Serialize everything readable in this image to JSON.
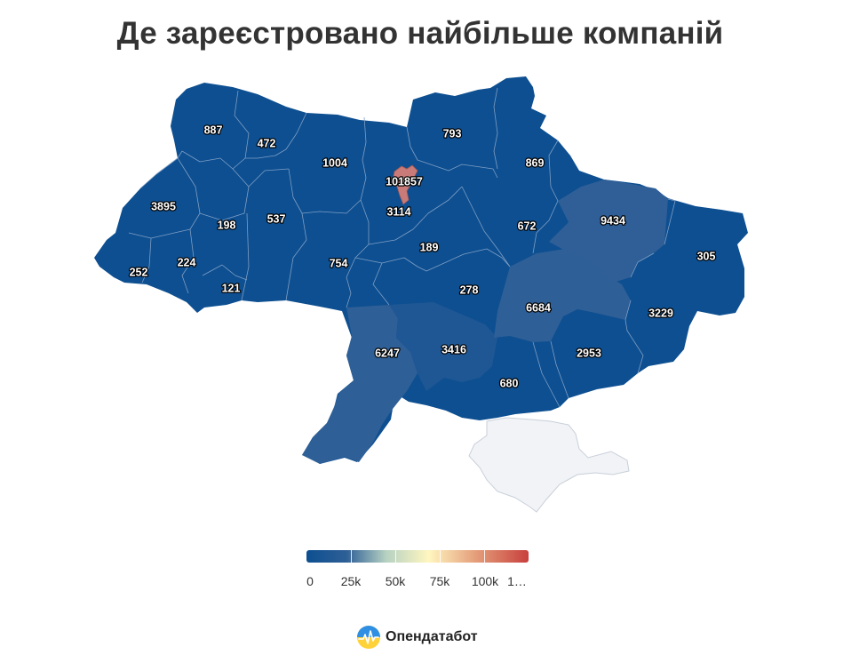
{
  "title": "Де зареєстровано найбільше компаній",
  "map": {
    "colors": {
      "low": "#0d4f91",
      "mid_low": "#2e5f96",
      "high": "#c8403d",
      "no_data": "#f1f3f6",
      "border": "#7f9ec4"
    },
    "regions": [
      {
        "id": "volyn",
        "value": "887"
      },
      {
        "id": "rivne",
        "value": "472"
      },
      {
        "id": "zhytomyr",
        "value": "1004"
      },
      {
        "id": "kyiv-city",
        "value": "101857"
      },
      {
        "id": "kyiv-oblast",
        "value": "3114"
      },
      {
        "id": "chernihiv",
        "value": "793"
      },
      {
        "id": "sumy",
        "value": "869"
      },
      {
        "id": "lviv",
        "value": "3895"
      },
      {
        "id": "ternopil",
        "value": "198"
      },
      {
        "id": "khmelnytskyi",
        "value": "537"
      },
      {
        "id": "kharkiv",
        "value": "9434"
      },
      {
        "id": "poltava",
        "value": "672"
      },
      {
        "id": "luhansk",
        "value": "305"
      },
      {
        "id": "zakarpattia",
        "value": "252"
      },
      {
        "id": "ivano-frankivsk",
        "value": "224"
      },
      {
        "id": "vinnytsia",
        "value": "754"
      },
      {
        "id": "cherkasy",
        "value": "189"
      },
      {
        "id": "chernivtsi",
        "value": "121"
      },
      {
        "id": "kirovohrad",
        "value": "278"
      },
      {
        "id": "dnipropetrovsk",
        "value": "6684"
      },
      {
        "id": "donetsk",
        "value": "3229"
      },
      {
        "id": "odesa",
        "value": "6247"
      },
      {
        "id": "mykolaiv",
        "value": "3416"
      },
      {
        "id": "zaporizhzhia",
        "value": "2953"
      },
      {
        "id": "kherson",
        "value": "680"
      },
      {
        "id": "crimea",
        "value": ""
      }
    ]
  },
  "legend": {
    "ticks": [
      "0",
      "25k",
      "50k",
      "75k",
      "100k",
      "1…"
    ]
  },
  "brand": {
    "name": "Опендатабот",
    "logo_icon": "opendatabot-logo-icon"
  }
}
